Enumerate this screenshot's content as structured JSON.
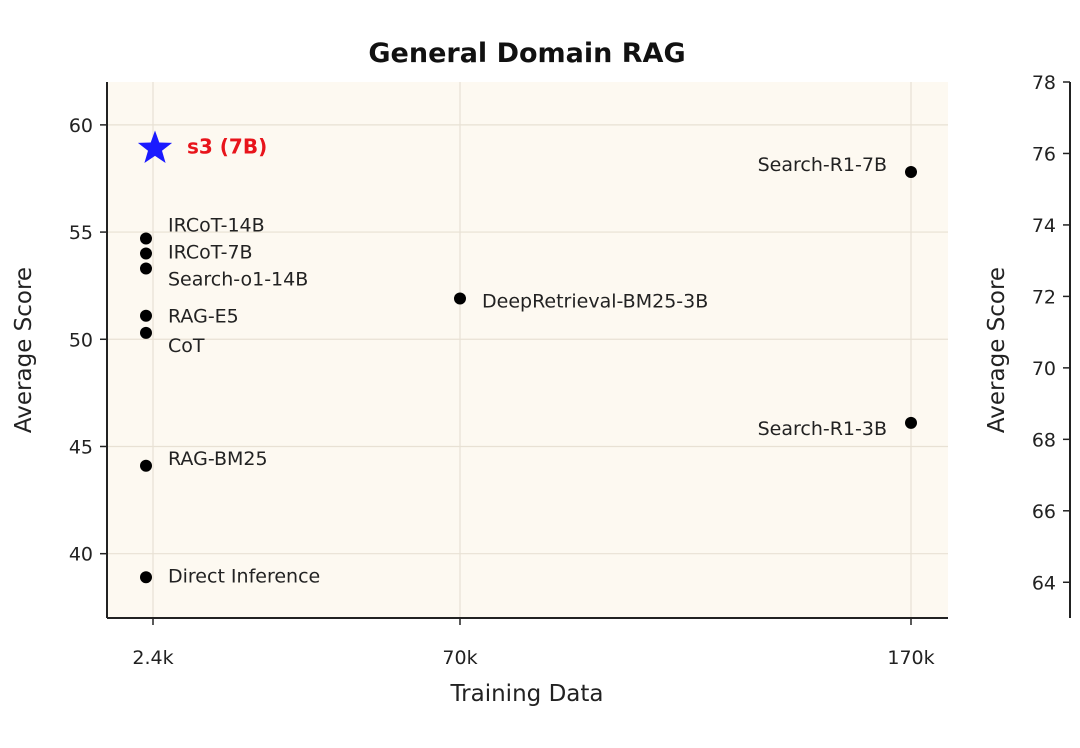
{
  "chart_data": [
    {
      "type": "scatter",
      "title": "General Domain RAG",
      "xlabel": "Training Data",
      "ylabel": "Average Score",
      "xticks": [
        "2.4k",
        "70k",
        "170k"
      ],
      "ylim": [
        37,
        62
      ],
      "yticks": [
        40,
        45,
        50,
        55,
        60
      ],
      "grid": true,
      "points": [
        {
          "label": "IRCoT-14B",
          "x": "2.4k",
          "y": 54.7,
          "color": "#000000",
          "marker": "circle"
        },
        {
          "label": "IRCoT-7B",
          "x": "2.4k",
          "y": 54.0,
          "color": "#000000",
          "marker": "circle"
        },
        {
          "label": "Search-o1-14B",
          "x": "2.4k",
          "y": 53.3,
          "color": "#000000",
          "marker": "circle"
        },
        {
          "label": "RAG-E5",
          "x": "2.4k",
          "y": 51.1,
          "color": "#000000",
          "marker": "circle"
        },
        {
          "label": "CoT",
          "x": "2.4k",
          "y": 50.3,
          "color": "#000000",
          "marker": "circle"
        },
        {
          "label": "RAG-BM25",
          "x": "2.4k",
          "y": 44.1,
          "color": "#000000",
          "marker": "circle"
        },
        {
          "label": "Direct Inference",
          "x": "2.4k",
          "y": 38.9,
          "color": "#000000",
          "marker": "circle"
        },
        {
          "label": "DeepRetrieval-BM25-3B",
          "x": "70k",
          "y": 51.9,
          "color": "#000000",
          "marker": "circle"
        },
        {
          "label": "Search-R1-7B",
          "x": "170k",
          "y": 57.8,
          "color": "#000000",
          "marker": "circle"
        },
        {
          "label": "Search-R1-3B",
          "x": "170k",
          "y": 46.1,
          "color": "#000000",
          "marker": "circle"
        },
        {
          "label": "s3 (7B)",
          "x": "2.4k",
          "y": 58.9,
          "color": "#1a1aff",
          "marker": "star",
          "label_color": "#e8141b"
        }
      ]
    },
    {
      "type": "scatter",
      "title": "",
      "ylabel": "Average Score",
      "ylim": [
        63,
        78
      ],
      "yticks": [
        64,
        66,
        68,
        70,
        72,
        74,
        76,
        78
      ],
      "points": []
    }
  ],
  "colors": {
    "plot_bg": "#fdf9f1",
    "grid": "#e8e1d4",
    "axis": "#222222"
  }
}
